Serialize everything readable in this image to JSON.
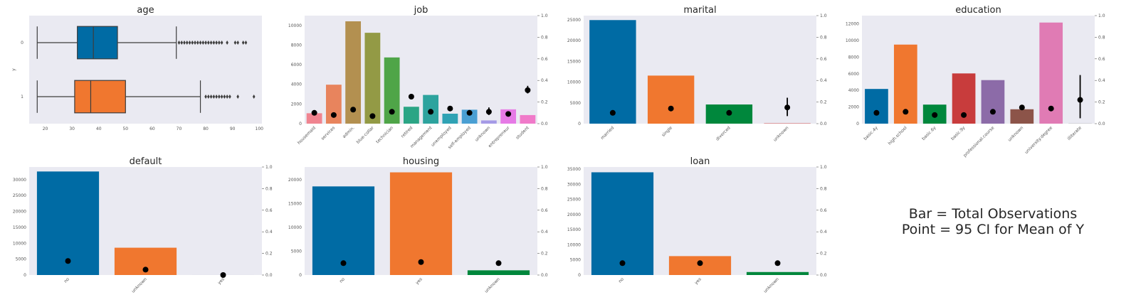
{
  "note": {
    "line1": "Bar = Total Observations",
    "line2": "Point = 95 CI for Mean of Y"
  },
  "chart_data": [
    {
      "type": "box",
      "title": "age",
      "ylabel": "y",
      "orientation": "horizontal",
      "xlim": [
        14,
        101
      ],
      "xticks": [
        20,
        30,
        40,
        50,
        60,
        70,
        80,
        90,
        100
      ],
      "groups": [
        {
          "label": "0",
          "whisker_low": 17,
          "q1": 32,
          "median": 38,
          "q3": 47,
          "whisker_high": 69,
          "outliers": [
            70,
            71,
            72,
            73,
            74,
            75,
            76,
            77,
            78,
            79,
            80,
            81,
            82,
            83,
            84,
            85,
            86,
            88,
            91,
            92,
            94,
            95
          ],
          "color": "#006BA4"
        },
        {
          "label": "1",
          "whisker_low": 17,
          "q1": 31,
          "median": 37,
          "q3": 50,
          "whisker_high": 78,
          "outliers": [
            80,
            81,
            82,
            83,
            84,
            85,
            86,
            87,
            88,
            89,
            92,
            98
          ],
          "color": "#F0772F"
        }
      ]
    },
    {
      "type": "bar",
      "title": "job",
      "categories": [
        "housemaid",
        "services",
        "admin.",
        "blue-collar",
        "technician",
        "retired",
        "management",
        "unemployed",
        "self-employed",
        "unknown",
        "entrepreneur",
        "student"
      ],
      "values": [
        1060,
        3969,
        10422,
        9254,
        6743,
        1720,
        2924,
        1014,
        1421,
        330,
        1456,
        875
      ],
      "colors": [
        "#F08490",
        "#E8845D",
        "#B39050",
        "#939A45",
        "#4FA548",
        "#2BA585",
        "#2DA39E",
        "#2FA2B4",
        "#4A9FD3",
        "#A59AE6",
        "#E67AE6",
        "#F07AC9"
      ],
      "ylim": [
        0,
        11000
      ],
      "yticks": [
        0,
        2000,
        4000,
        6000,
        8000,
        10000
      ],
      "y2lim": [
        0,
        1
      ],
      "y2ticks": [
        0.0,
        0.2,
        0.4,
        0.6,
        0.8,
        1.0
      ],
      "points": [
        {
          "mean": 0.1,
          "ci": [
            0.085,
            0.115
          ]
        },
        {
          "mean": 0.08,
          "ci": [
            0.072,
            0.089
          ]
        },
        {
          "mean": 0.13,
          "ci": [
            0.123,
            0.136
          ]
        },
        {
          "mean": 0.07,
          "ci": [
            0.064,
            0.074
          ]
        },
        {
          "mean": 0.11,
          "ci": [
            0.103,
            0.116
          ]
        },
        {
          "mean": 0.25,
          "ci": [
            0.23,
            0.27
          ]
        },
        {
          "mean": 0.11,
          "ci": [
            0.1,
            0.121
          ]
        },
        {
          "mean": 0.14,
          "ci": [
            0.12,
            0.16
          ]
        },
        {
          "mean": 0.1,
          "ci": [
            0.085,
            0.115
          ]
        },
        {
          "mean": 0.11,
          "ci": [
            0.08,
            0.15
          ]
        },
        {
          "mean": 0.09,
          "ci": [
            0.075,
            0.1
          ]
        },
        {
          "mean": 0.31,
          "ci": [
            0.28,
            0.35
          ]
        }
      ]
    },
    {
      "type": "bar",
      "title": "marital",
      "categories": [
        "married",
        "single",
        "divorced",
        "unknown"
      ],
      "values": [
        24928,
        11568,
        4612,
        80
      ],
      "colors": [
        "#006BA4",
        "#F0772F",
        "#00873C",
        "#C83C3C"
      ],
      "ylim": [
        0,
        26000
      ],
      "yticks": [
        0,
        5000,
        10000,
        15000,
        20000,
        25000
      ],
      "y2lim": [
        0,
        1
      ],
      "y2ticks": [
        0.0,
        0.2,
        0.4,
        0.6,
        0.8,
        1.0
      ],
      "points": [
        {
          "mean": 0.1,
          "ci": [
            0.097,
            0.105
          ]
        },
        {
          "mean": 0.14,
          "ci": [
            0.134,
            0.146
          ]
        },
        {
          "mean": 0.1,
          "ci": [
            0.094,
            0.112
          ]
        },
        {
          "mean": 0.15,
          "ci": [
            0.07,
            0.24
          ]
        }
      ]
    },
    {
      "type": "bar",
      "title": "education",
      "categories": [
        "basic.4y",
        "high.school",
        "basic.6y",
        "basic.9y",
        "professional.course",
        "unknown",
        "university.degree",
        "illiterate"
      ],
      "values": [
        4176,
        9515,
        2292,
        6045,
        5243,
        1731,
        12168,
        18
      ],
      "colors": [
        "#006BA4",
        "#F0772F",
        "#00873C",
        "#C83C3C",
        "#8C6BA8",
        "#8C5449",
        "#E07BB4",
        "#7F7F7F"
      ],
      "ylim": [
        0,
        13000
      ],
      "yticks": [
        0,
        2000,
        4000,
        6000,
        8000,
        10000,
        12000
      ],
      "y2lim": [
        0,
        1
      ],
      "y2ticks": [
        0.0,
        0.2,
        0.4,
        0.6,
        0.8,
        1.0
      ],
      "points": [
        {
          "mean": 0.1,
          "ci": [
            0.092,
            0.11
          ]
        },
        {
          "mean": 0.11,
          "ci": [
            0.102,
            0.114
          ]
        },
        {
          "mean": 0.08,
          "ci": [
            0.071,
            0.093
          ]
        },
        {
          "mean": 0.08,
          "ci": [
            0.072,
            0.085
          ]
        },
        {
          "mean": 0.11,
          "ci": [
            0.105,
            0.122
          ]
        },
        {
          "mean": 0.15,
          "ci": [
            0.13,
            0.16
          ]
        },
        {
          "mean": 0.14,
          "ci": [
            0.131,
            0.143
          ]
        },
        {
          "mean": 0.22,
          "ci": [
            0.05,
            0.45
          ]
        }
      ]
    },
    {
      "type": "bar",
      "title": "default",
      "categories": [
        "no",
        "unknown",
        "yes"
      ],
      "values": [
        32588,
        8597,
        3
      ],
      "colors": [
        "#006BA4",
        "#F0772F",
        "#00873C"
      ],
      "ylim": [
        0,
        34000
      ],
      "yticks": [
        0,
        5000,
        10000,
        15000,
        20000,
        25000,
        30000
      ],
      "y2lim": [
        0,
        1
      ],
      "y2ticks": [
        0.0,
        0.2,
        0.4,
        0.6,
        0.8,
        1.0
      ],
      "points": [
        {
          "mean": 0.13,
          "ci": [
            0.125,
            0.132
          ]
        },
        {
          "mean": 0.05,
          "ci": [
            0.047,
            0.057
          ]
        },
        {
          "mean": 0.0,
          "ci": [
            0.0,
            0.0
          ]
        }
      ]
    },
    {
      "type": "bar",
      "title": "housing",
      "categories": [
        "no",
        "yes",
        "unknown"
      ],
      "values": [
        18622,
        21576,
        990
      ],
      "colors": [
        "#006BA4",
        "#F0772F",
        "#00873C"
      ],
      "ylim": [
        0,
        22700
      ],
      "yticks": [
        0,
        5000,
        10000,
        15000,
        20000
      ],
      "y2lim": [
        0,
        1
      ],
      "y2ticks": [
        0.0,
        0.2,
        0.4,
        0.6,
        0.8,
        1.0
      ],
      "points": [
        {
          "mean": 0.11,
          "ci": [
            0.104,
            0.113
          ]
        },
        {
          "mean": 0.12,
          "ci": [
            0.112,
            0.12
          ]
        },
        {
          "mean": 0.11,
          "ci": [
            0.09,
            0.13
          ]
        }
      ]
    },
    {
      "type": "bar",
      "title": "loan",
      "categories": [
        "no",
        "yes",
        "unknown"
      ],
      "values": [
        33950,
        6248,
        990
      ],
      "colors": [
        "#006BA4",
        "#F0772F",
        "#00873C"
      ],
      "ylim": [
        0,
        35700
      ],
      "yticks": [
        0,
        5000,
        10000,
        15000,
        20000,
        25000,
        30000,
        35000
      ],
      "y2lim": [
        0,
        1
      ],
      "y2ticks": [
        0.0,
        0.2,
        0.4,
        0.6,
        0.8,
        1.0
      ],
      "points": [
        {
          "mean": 0.11,
          "ci": [
            0.11,
            0.117
          ]
        },
        {
          "mean": 0.11,
          "ci": [
            0.101,
            0.117
          ]
        },
        {
          "mean": 0.11,
          "ci": [
            0.09,
            0.13
          ]
        }
      ]
    }
  ]
}
